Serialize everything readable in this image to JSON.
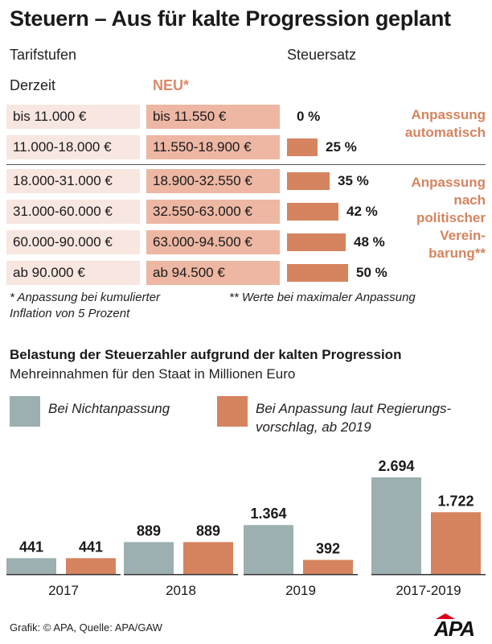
{
  "title": "Steuern – Aus für kalte Progression geplant",
  "headers": {
    "stages": "Tarifstufen",
    "rate": "Steuersatz",
    "current": "Derzeit",
    "new": "NEU*"
  },
  "colors": {
    "salmon": "#d5845f",
    "salmon_light": "#edb7a3",
    "salmon_pale": "#f8e6e0",
    "grey_blue": "#9cafb1"
  },
  "rows": [
    {
      "old": "bis 11.000 €",
      "new": "bis 11.550 €",
      "rate": 0,
      "rate_label": "0 %"
    },
    {
      "old": "11.000-18.000 €",
      "new": "11.550-18.900 €",
      "rate": 25,
      "rate_label": "25 %"
    },
    {
      "old": "18.000-31.000 €",
      "new": "18.900-32.550 €",
      "rate": 35,
      "rate_label": "35 %"
    },
    {
      "old": "31.000-60.000 €",
      "new": "32.550-63.000 €",
      "rate": 42,
      "rate_label": "42 %"
    },
    {
      "old": "60.000-90.000 €",
      "new": "63.000-94.500 €",
      "rate": 48,
      "rate_label": "48 %"
    },
    {
      "old": "ab 90.000 €",
      "new": "ab 94.500 €",
      "rate": 50,
      "rate_label": "50 %"
    }
  ],
  "side_notes": {
    "auto_line1": "Anpassung",
    "auto_line2": "automatisch",
    "political_line1": "Anpassung",
    "political_line2": "nach",
    "political_line3": "politischer",
    "political_line4": "Verein-",
    "political_line5": "barung**"
  },
  "footnotes": {
    "one_line1": "* Anpassung bei kumulierter",
    "one_line2": "Inflation von 5 Prozent",
    "two": "** Werte bei maximaler Anpassung"
  },
  "chart_title": "Belastung der Steuerzahler aufgrund der kalten Progression",
  "chart_subtitle": "Mehreinnahmen für den Staat in Millionen Euro",
  "legend": {
    "series1": "Bei Nichtanpassung",
    "series2_line1": "Bei Anpassung laut Regierungs-",
    "series2_line2": "vorschlag, ab 2019"
  },
  "chart_data": {
    "type": "bar",
    "title": "Belastung der Steuerzahler aufgrund der kalten Progression",
    "subtitle": "Mehreinnahmen für den Staat in Millionen Euro",
    "categories": [
      "2017",
      "2018",
      "2019",
      "2017-2019"
    ],
    "series": [
      {
        "name": "Bei Nichtanpassung",
        "values": [
          441,
          889,
          1364,
          2694
        ],
        "labels": [
          "441",
          "889",
          "1.364",
          "2.694"
        ],
        "color": "#9cafb1"
      },
      {
        "name": "Bei Anpassung laut Regierungsvorschlag, ab 2019",
        "values": [
          441,
          889,
          392,
          1722
        ],
        "labels": [
          "441",
          "889",
          "392",
          "1.722"
        ],
        "color": "#d5845f"
      }
    ],
    "ylim": [
      0,
      2694
    ],
    "grid": false
  },
  "footer": {
    "source": "Grafik: © APA, Quelle: APA/GAW",
    "logo": "APA"
  }
}
